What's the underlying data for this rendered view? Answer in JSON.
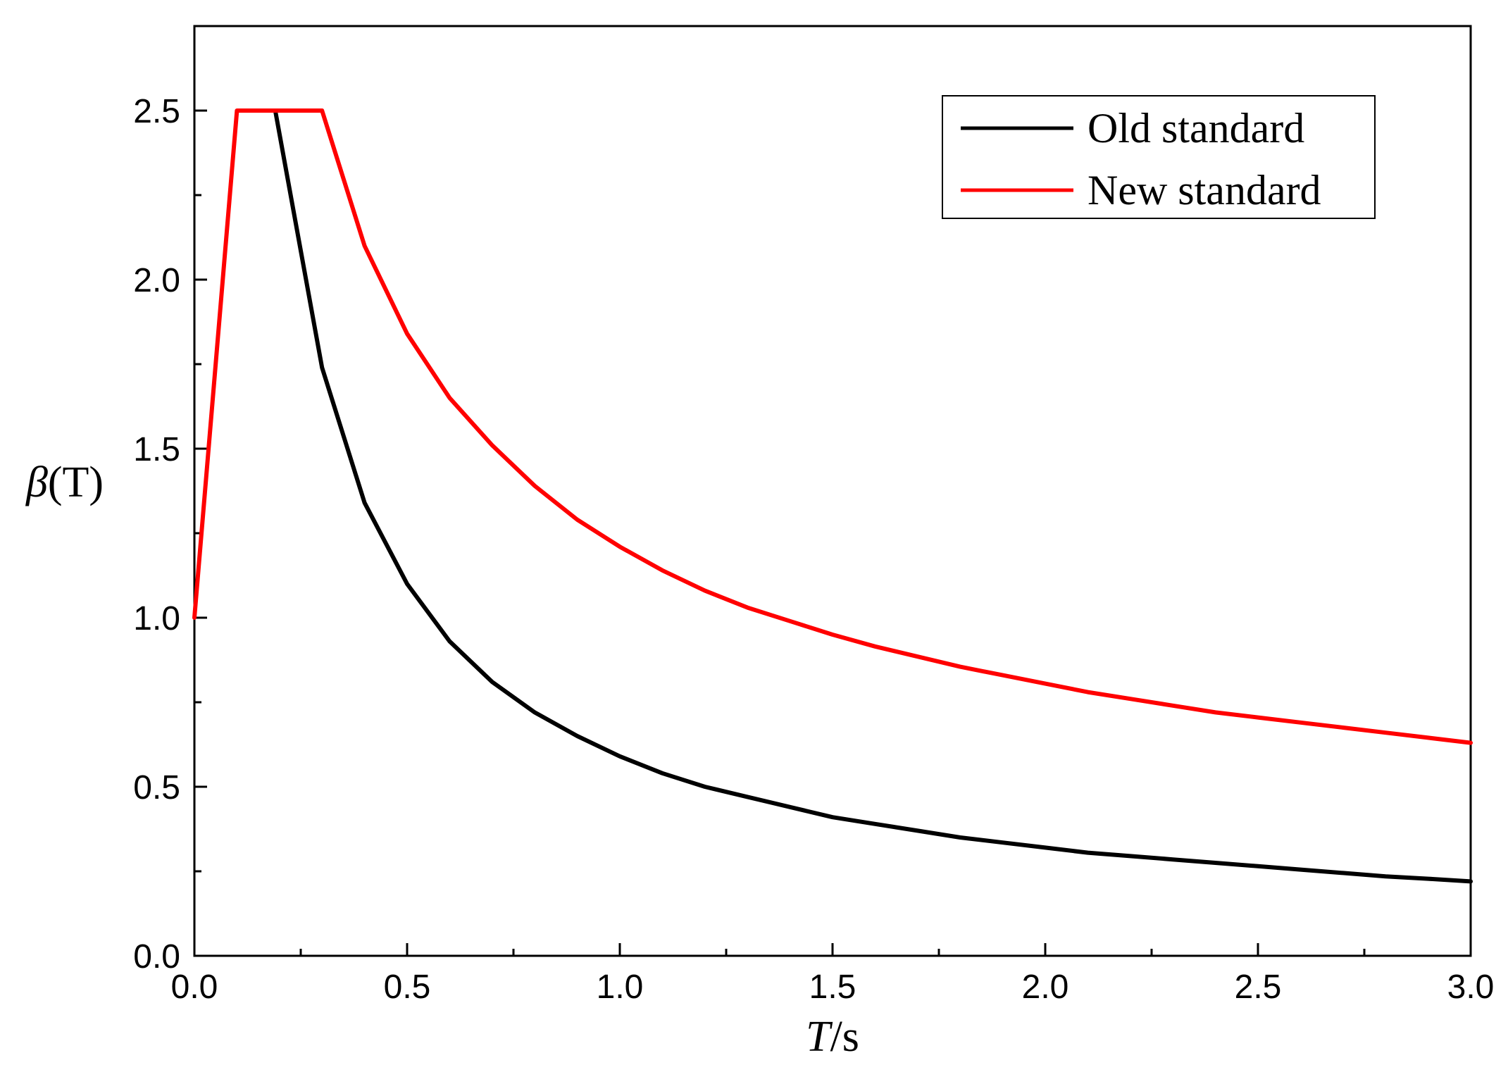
{
  "chart_data": {
    "type": "line",
    "title": "",
    "xlabel": {
      "italic": "T",
      "rest": "/s"
    },
    "ylabel": {
      "italic": "β",
      "rest": "(T)"
    },
    "xlim": [
      0,
      3.0
    ],
    "ylim": [
      0,
      2.75
    ],
    "x_ticks": [
      0.0,
      0.5,
      1.0,
      1.5,
      2.0,
      2.5,
      3.0
    ],
    "x_tick_labels": [
      "0.0",
      "0.5",
      "1.0",
      "1.5",
      "2.0",
      "2.5",
      "3.0"
    ],
    "x_minor_step": 0.25,
    "y_ticks": [
      0.0,
      0.5,
      1.0,
      1.5,
      2.0,
      2.5
    ],
    "y_tick_labels": [
      "0.0",
      "0.5",
      "1.0",
      "1.5",
      "2.0",
      "2.5"
    ],
    "y_minor_step": 0.25,
    "grid": false,
    "legend_position": "top-right",
    "series": [
      {
        "name": "Old standard",
        "color": "#000000",
        "x": [
          0.19,
          0.3,
          0.4,
          0.5,
          0.6,
          0.7,
          0.8,
          0.9,
          1.0,
          1.1,
          1.2,
          1.3,
          1.4,
          1.5,
          1.6,
          1.7,
          1.8,
          1.9,
          2.0,
          2.1,
          2.2,
          2.3,
          2.4,
          2.5,
          2.6,
          2.7,
          2.8,
          2.9,
          3.0
        ],
        "y": [
          2.5,
          1.74,
          1.34,
          1.1,
          0.93,
          0.81,
          0.72,
          0.65,
          0.59,
          0.54,
          0.5,
          0.47,
          0.44,
          0.41,
          0.39,
          0.37,
          0.35,
          0.335,
          0.32,
          0.305,
          0.295,
          0.285,
          0.275,
          0.265,
          0.255,
          0.245,
          0.235,
          0.228,
          0.22
        ]
      },
      {
        "name": "New standard",
        "color": "#ff0000",
        "x": [
          0.0,
          0.1,
          0.3,
          0.4,
          0.5,
          0.6,
          0.7,
          0.8,
          0.9,
          1.0,
          1.1,
          1.2,
          1.3,
          1.4,
          1.5,
          1.6,
          1.7,
          1.8,
          1.9,
          2.0,
          2.1,
          2.2,
          2.3,
          2.4,
          2.5,
          2.6,
          2.7,
          2.8,
          2.9,
          3.0
        ],
        "y": [
          1.0,
          2.5,
          2.5,
          2.1,
          1.84,
          1.65,
          1.51,
          1.39,
          1.29,
          1.21,
          1.14,
          1.08,
          1.03,
          0.99,
          0.95,
          0.915,
          0.885,
          0.855,
          0.83,
          0.805,
          0.78,
          0.76,
          0.74,
          0.72,
          0.705,
          0.69,
          0.675,
          0.66,
          0.645,
          0.63
        ]
      }
    ]
  }
}
